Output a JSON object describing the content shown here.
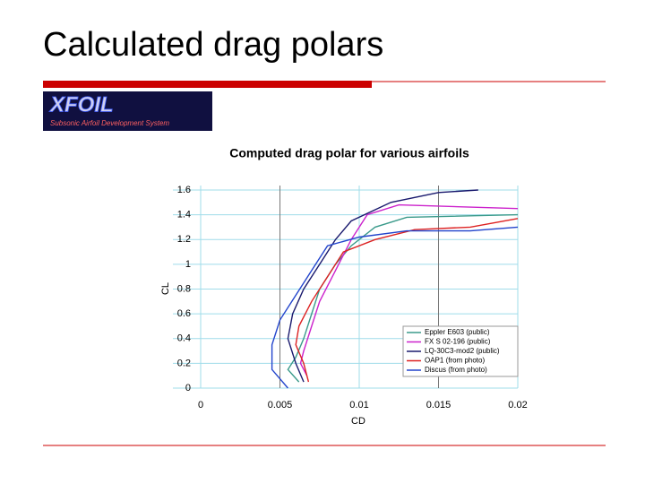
{
  "slide": {
    "title": "Calculated drag polars"
  },
  "logo": {
    "title": "XFOIL",
    "subtitle": "Subsonic Airfoil Development System"
  },
  "chart_data": {
    "type": "line",
    "title": "Computed drag polar for various airfoils",
    "xlabel": "CD",
    "ylabel": "CL",
    "xlim": [
      0,
      0.02
    ],
    "ylim": [
      0,
      1.6
    ],
    "xticks": [
      0,
      0.005,
      0.01,
      0.015,
      0.02
    ],
    "yticks": [
      0,
      0.2,
      0.4,
      0.6,
      0.8,
      1,
      1.2,
      1.4,
      1.6
    ],
    "grid": true,
    "legend": "lower right",
    "series": [
      {
        "name": "Eppler E603 (public)",
        "color": "#3a9a8a",
        "x": [
          0.0062,
          0.0055,
          0.006,
          0.0065,
          0.007,
          0.0075,
          0.0085,
          0.0095,
          0.011,
          0.013,
          0.02
        ],
        "values": [
          0.05,
          0.15,
          0.25,
          0.4,
          0.6,
          0.8,
          1.0,
          1.15,
          1.3,
          1.38,
          1.4
        ]
      },
      {
        "name": "FX S 02-196 (public)",
        "color": "#cc22cc",
        "x": [
          0.0067,
          0.0063,
          0.0065,
          0.007,
          0.0075,
          0.0085,
          0.0095,
          0.0105,
          0.0125,
          0.02
        ],
        "values": [
          0.1,
          0.2,
          0.3,
          0.5,
          0.7,
          0.95,
          1.2,
          1.4,
          1.48,
          1.45
        ]
      },
      {
        "name": "LQ-30C3-mod2 (public)",
        "color": "#1a1a6e",
        "x": [
          0.0065,
          0.006,
          0.0055,
          0.0058,
          0.0065,
          0.0075,
          0.0085,
          0.0095,
          0.012,
          0.015,
          0.0175
        ],
        "values": [
          0.05,
          0.2,
          0.4,
          0.6,
          0.8,
          1.0,
          1.2,
          1.35,
          1.5,
          1.58,
          1.6
        ]
      },
      {
        "name": "OAP1 (from photo)",
        "color": "#dd2222",
        "x": [
          0.0068,
          0.0065,
          0.006,
          0.0062,
          0.007,
          0.008,
          0.009,
          0.011,
          0.0135,
          0.017,
          0.02
        ],
        "values": [
          0.05,
          0.2,
          0.35,
          0.5,
          0.7,
          0.9,
          1.1,
          1.2,
          1.28,
          1.3,
          1.37
        ]
      },
      {
        "name": "Discus (from photo)",
        "color": "#2244cc",
        "x": [
          0.0055,
          0.0045,
          0.0045,
          0.005,
          0.006,
          0.007,
          0.008,
          0.01,
          0.013,
          0.017,
          0.02
        ],
        "values": [
          0.0,
          0.15,
          0.35,
          0.55,
          0.75,
          0.95,
          1.15,
          1.22,
          1.27,
          1.27,
          1.3
        ]
      }
    ]
  }
}
